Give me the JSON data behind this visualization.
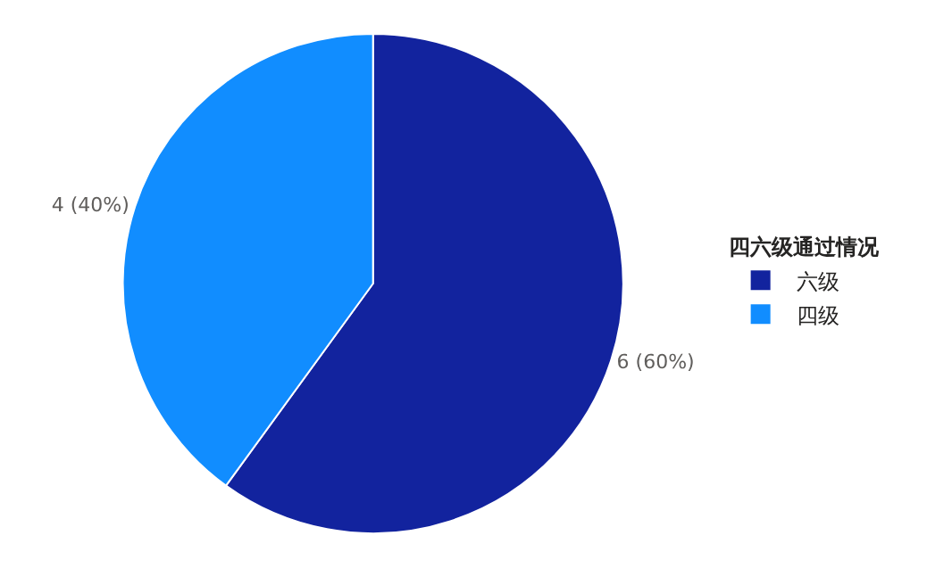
{
  "chart_data": {
    "type": "pie",
    "legend_title": "四六级通过情况",
    "categories": [
      "六级",
      "四级"
    ],
    "values": [
      6,
      4
    ],
    "colors": [
      "#12239e",
      "#118dff"
    ],
    "value_labels": [
      "6 (60%)",
      "4 (40%)"
    ],
    "legend": "right"
  }
}
